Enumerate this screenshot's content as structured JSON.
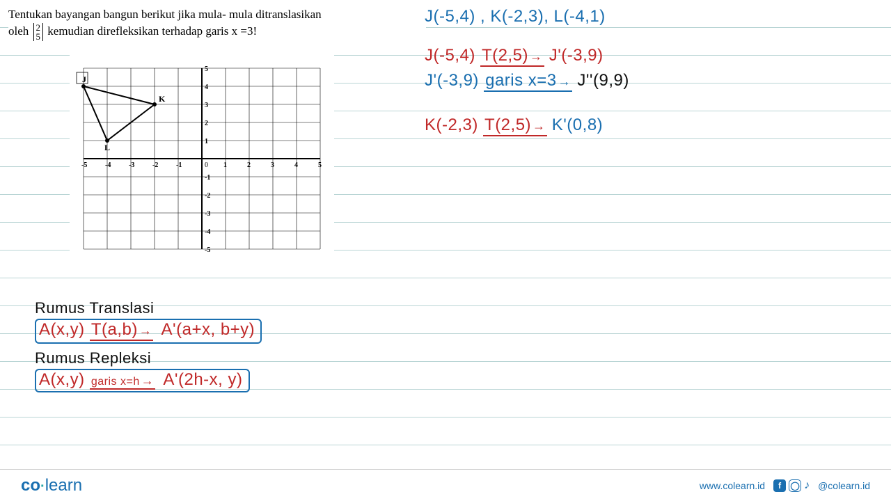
{
  "problem": {
    "line1": "Tentukan bayangan bangun berikut jika mula- mula ditranslasikan",
    "line2a": "oleh ",
    "matrix_top": "2",
    "matrix_bot": "5",
    "line2b": " kemudian direfleksikan terhadap garis x =3!"
  },
  "graph": {
    "xlim": [
      -5,
      5
    ],
    "ylim": [
      -5,
      5
    ],
    "tick_step": 1,
    "points": {
      "J": {
        "x": -5,
        "y": 4,
        "label": "J"
      },
      "K": {
        "x": -2,
        "y": 3,
        "label": "K"
      },
      "L": {
        "x": -4,
        "y": 1,
        "label": "L"
      }
    },
    "triangle_fill": "none",
    "triangle_stroke": "#000000",
    "axis_color": "#000000",
    "grid_color": "#000000",
    "background_color": "#ffffff"
  },
  "notes": {
    "coords_line": "J(-5,4) ,  K(-2,3), L(-4,1)",
    "j1a": "J(-5,4)",
    "j1mid": "T(2,5)",
    "j1b": "J'(-3,9)",
    "j2a": "J'(-3,9)",
    "j2mid": "garis x=3",
    "j2b": "J''(9,9)",
    "k1a": "K(-2,3)",
    "k1mid": "T(2,5)",
    "k1b": "K'(0,8)"
  },
  "formulas": {
    "title1": "Rumus Translasi",
    "f1a": "A(x,y)",
    "f1mid": "T(a,b)",
    "f1b": "A'(a+x, b+y)",
    "title2": "Rumus Repleksi",
    "f2a": "A(x,y)",
    "f2mid": "garis x=h",
    "f2b": "A'(2h-x, y)"
  },
  "footer": {
    "brand_co": "co",
    "brand_learn": "learn",
    "url": "www.colearn.id",
    "handle": "@colearn.id"
  },
  "colors": {
    "blue": "#1a6fb0",
    "red": "#c02828",
    "black": "#111111",
    "ruled_line": "#b8d4d4"
  }
}
